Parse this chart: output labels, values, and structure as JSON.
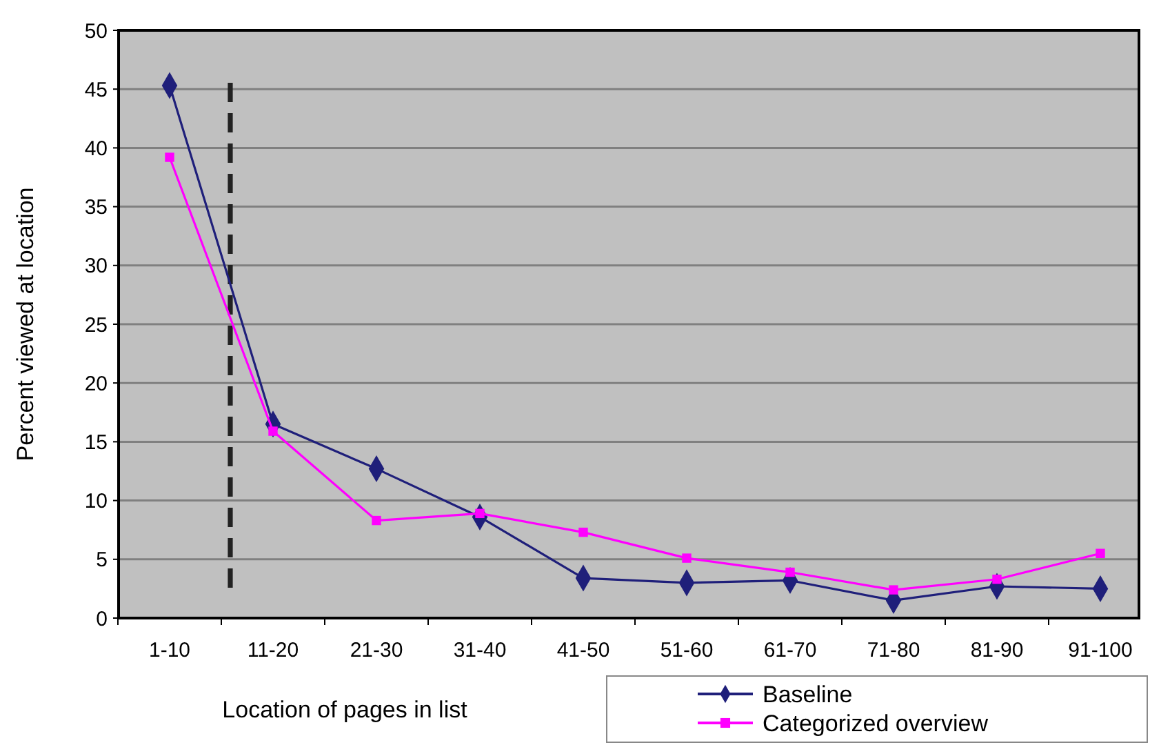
{
  "chart_data": {
    "type": "line",
    "xlabel": "Location of pages in list",
    "ylabel": "Percent viewed at location",
    "categories": [
      "1-10",
      "11-20",
      "21-30",
      "31-40",
      "41-50",
      "51-60",
      "61-70",
      "71-80",
      "81-90",
      "91-100"
    ],
    "series": [
      {
        "name": "Baseline",
        "color": "#1f1f7a",
        "marker": "diamond",
        "values": [
          45.3,
          16.5,
          12.7,
          8.6,
          3.4,
          3.0,
          3.2,
          1.5,
          2.7,
          2.5
        ]
      },
      {
        "name": "Categorized overview",
        "color": "#ff00ff",
        "marker": "square",
        "values": [
          39.2,
          15.9,
          8.3,
          8.9,
          7.3,
          5.1,
          3.9,
          2.4,
          3.3,
          5.5
        ]
      }
    ],
    "ylim": [
      0,
      50
    ],
    "yticks": [
      0,
      5,
      10,
      15,
      20,
      25,
      30,
      35,
      40,
      45,
      50
    ],
    "grid": "y",
    "legend": "bottom right"
  }
}
